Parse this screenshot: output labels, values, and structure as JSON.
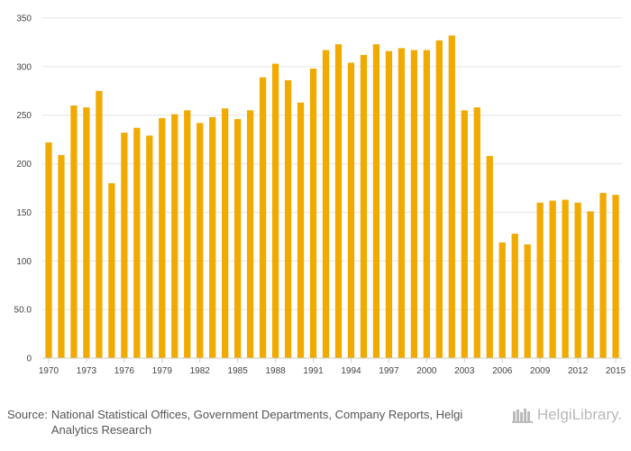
{
  "chart_data": {
    "type": "bar",
    "title": "",
    "xlabel": "",
    "ylabel": "",
    "ylim": [
      0,
      350
    ],
    "yticks": [
      {
        "value": 0,
        "label": "0"
      },
      {
        "value": 50,
        "label": "50.0"
      },
      {
        "value": 100,
        "label": "100"
      },
      {
        "value": 150,
        "label": "150"
      },
      {
        "value": 200,
        "label": "200"
      },
      {
        "value": 250,
        "label": "250"
      },
      {
        "value": 300,
        "label": "300"
      },
      {
        "value": 350,
        "label": "350"
      }
    ],
    "xtick_labels": [
      "1970",
      "1973",
      "1976",
      "1979",
      "1982",
      "1985",
      "1988",
      "1991",
      "1994",
      "1997",
      "2000",
      "2003",
      "2006",
      "2009",
      "2012",
      "2015"
    ],
    "categories": [
      "1970",
      "1971",
      "1972",
      "1973",
      "1974",
      "1975",
      "1976",
      "1977",
      "1978",
      "1979",
      "1980",
      "1981",
      "1982",
      "1983",
      "1984",
      "1985",
      "1986",
      "1987",
      "1988",
      "1989",
      "1990",
      "1991",
      "1992",
      "1993",
      "1994",
      "1995",
      "1996",
      "1997",
      "1998",
      "1999",
      "2000",
      "2001",
      "2002",
      "2003",
      "2004",
      "2005",
      "2006",
      "2007",
      "2008",
      "2009",
      "2010",
      "2011",
      "2012",
      "2013",
      "2014",
      "2015"
    ],
    "values": [
      222,
      209,
      260,
      258,
      275,
      180,
      232,
      237,
      229,
      247,
      251,
      255,
      242,
      248,
      257,
      246,
      255,
      289,
      303,
      286,
      263,
      298,
      317,
      323,
      304,
      312,
      323,
      316,
      319,
      317,
      317,
      327,
      332,
      255,
      258,
      208,
      119,
      128,
      117,
      160,
      162,
      163,
      160,
      151,
      170,
      168
    ],
    "grid": true,
    "legend": "none",
    "bar_color": "#f0aa00"
  },
  "footer": {
    "source_label": "Source:",
    "source_text": "National Statistical Offices, Government Departments, Company Reports, Helgi Analytics Research",
    "logo_text": "HelgiLibrary."
  }
}
